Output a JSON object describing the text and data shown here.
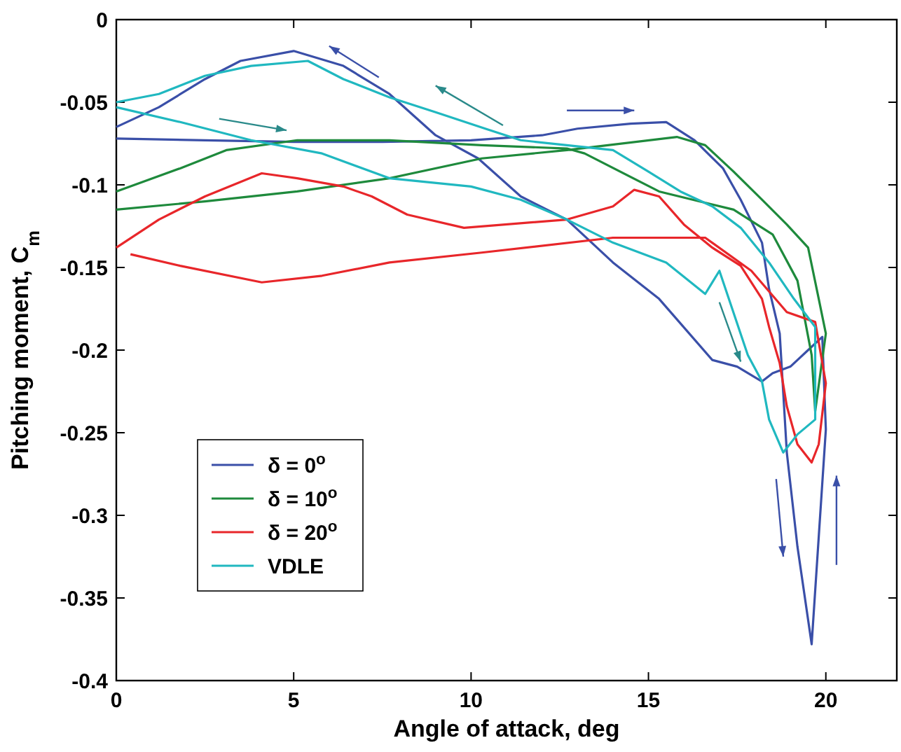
{
  "chart_data": {
    "type": "line",
    "xlabel": "Angle of attack, deg",
    "ylabel": "Pitching moment, C$_{m}$",
    "xlim": [
      0,
      22
    ],
    "xticks": [
      0,
      5,
      10,
      15,
      20
    ],
    "ylim": [
      -0.4,
      0
    ],
    "yticks": [
      -0.4,
      -0.35,
      -0.3,
      -0.25,
      -0.2,
      -0.15,
      -0.1,
      -0.05,
      0
    ],
    "grid": false,
    "legend": "bottom left",
    "marker": "none",
    "line_style": "solid",
    "series": [
      {
        "name": "δ = 0$^{o}$",
        "color": "#3a4fa8",
        "x": [
          0,
          2.5,
          5,
          7.5,
          10,
          12,
          13,
          14.5,
          15.5,
          16.3,
          17.1,
          17.6,
          18.2,
          18.4,
          18.7,
          18.9,
          19.2,
          19.6,
          20,
          19.9,
          19.5,
          19,
          18.5,
          18.2,
          17.5,
          16.8,
          15.3,
          14,
          12.7,
          11.4,
          10.2,
          9,
          7.7,
          6.4,
          5,
          3.5,
          2.5,
          1.2,
          0
        ],
        "values": [
          -0.072,
          -0.073,
          -0.074,
          -0.074,
          -0.073,
          -0.07,
          -0.066,
          -0.063,
          -0.062,
          -0.073,
          -0.09,
          -0.109,
          -0.135,
          -0.163,
          -0.19,
          -0.262,
          -0.319,
          -0.378,
          -0.248,
          -0.192,
          -0.2,
          -0.21,
          -0.214,
          -0.219,
          -0.21,
          -0.206,
          -0.169,
          -0.147,
          -0.121,
          -0.107,
          -0.084,
          -0.07,
          -0.045,
          -0.028,
          -0.019,
          -0.025,
          -0.036,
          -0.053,
          -0.065
        ]
      },
      {
        "name": "δ = 10$^{o}$",
        "color": "#1e8a3c",
        "x": [
          0,
          1.8,
          3.1,
          5.1,
          7.7,
          10.3,
          12.7,
          13.2,
          15.3,
          17.4,
          18.5,
          19.2,
          19.6,
          19.7,
          20,
          19.8,
          19.5,
          18.9,
          18.2,
          17.4,
          16.6,
          15.8,
          12.7,
          10.3,
          7.7,
          5.1,
          2.5,
          0
        ],
        "values": [
          -0.104,
          -0.09,
          -0.079,
          -0.073,
          -0.073,
          -0.076,
          -0.078,
          -0.081,
          -0.104,
          -0.115,
          -0.13,
          -0.158,
          -0.203,
          -0.237,
          -0.19,
          -0.169,
          -0.138,
          -0.124,
          -0.109,
          -0.092,
          -0.076,
          -0.071,
          -0.079,
          -0.084,
          -0.096,
          -0.104,
          -0.11,
          -0.115
        ]
      },
      {
        "name": "δ = 20$^{o}$",
        "color": "#e8262a",
        "x": [
          0,
          1.2,
          2.5,
          4.1,
          5.1,
          6.4,
          7.2,
          8.2,
          9.8,
          12.7,
          14,
          14.6,
          15.3,
          16,
          16.8,
          17.6,
          18.2,
          18.4,
          18.7,
          18.9,
          19.2,
          19.6,
          19.8,
          20,
          19.7,
          18.9,
          17.9,
          16.6,
          14,
          10.3,
          7.7,
          5.8,
          4.1,
          1.8,
          0.4
        ],
        "values": [
          -0.138,
          -0.121,
          -0.107,
          -0.093,
          -0.096,
          -0.101,
          -0.107,
          -0.118,
          -0.126,
          -0.121,
          -0.113,
          -0.103,
          -0.107,
          -0.124,
          -0.138,
          -0.149,
          -0.169,
          -0.186,
          -0.208,
          -0.234,
          -0.257,
          -0.268,
          -0.257,
          -0.22,
          -0.183,
          -0.177,
          -0.152,
          -0.132,
          -0.132,
          -0.141,
          -0.147,
          -0.155,
          -0.159,
          -0.149,
          -0.142
        ]
      },
      {
        "name": "VDLE",
        "color": "#20b8c0",
        "x": [
          0,
          1.2,
          2.5,
          3.8,
          5.4,
          6.4,
          7.7,
          9,
          10.4,
          11.4,
          12.7,
          14,
          15,
          15.9,
          16.8,
          17.6,
          18.4,
          19.1,
          19.7,
          19.7,
          19.2,
          18.8,
          18.4,
          18.2,
          17.8,
          17,
          16.6,
          15.5,
          14,
          12.7,
          11.4,
          10,
          7.7,
          5.8,
          3.8,
          1.8,
          0
        ],
        "values": [
          -0.05,
          -0.045,
          -0.034,
          -0.028,
          -0.025,
          -0.036,
          -0.047,
          -0.056,
          -0.066,
          -0.073,
          -0.076,
          -0.079,
          -0.092,
          -0.104,
          -0.113,
          -0.126,
          -0.147,
          -0.169,
          -0.186,
          -0.242,
          -0.251,
          -0.262,
          -0.242,
          -0.219,
          -0.203,
          -0.152,
          -0.166,
          -0.147,
          -0.135,
          -0.121,
          -0.109,
          -0.101,
          -0.096,
          -0.081,
          -0.073,
          -0.062,
          -0.053
        ]
      }
    ]
  }
}
